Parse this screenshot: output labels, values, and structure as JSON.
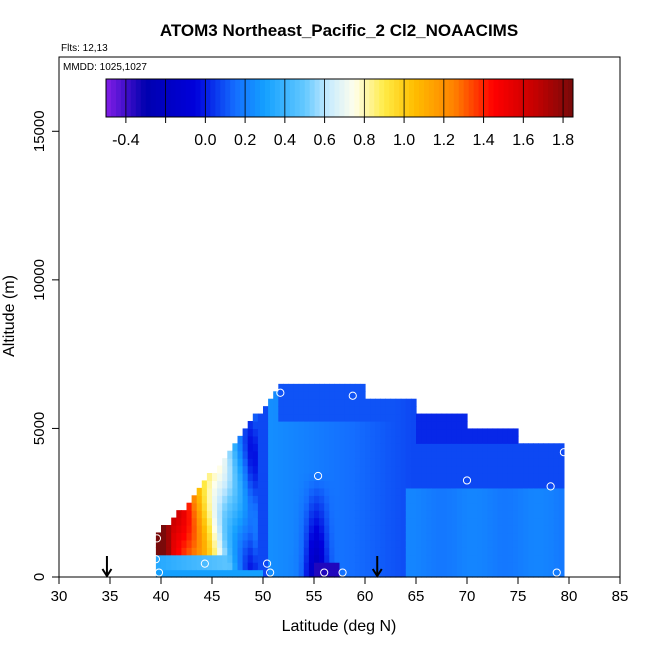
{
  "chart_data": {
    "type": "heatmap",
    "title": "ATOM3 Northeast_Pacific_2 Cl2_NOAACIMS",
    "flights_note": "Flts: 12,13",
    "dates_note": "MMDD: 1025,1027",
    "xlabel": "Latitude (deg N)",
    "ylabel": "Altitude (m)",
    "xlim": [
      30,
      85
    ],
    "ylim": [
      0,
      17500
    ],
    "x_ticks": [
      "30",
      "35",
      "40",
      "45",
      "50",
      "55",
      "60",
      "65",
      "70",
      "75",
      "80",
      "85"
    ],
    "y_ticks": [
      "0",
      "5000",
      "10000",
      "15000"
    ],
    "colorbar": {
      "range": [
        -0.5,
        1.85
      ],
      "tick_labels": [
        "-0.4",
        "0.0",
        "0.2",
        "0.4",
        "0.6",
        "0.8",
        "1.0",
        "1.2",
        "1.4",
        "1.6",
        "1.8"
      ],
      "tick_values": [
        -0.4,
        0.0,
        0.2,
        0.4,
        0.6,
        0.8,
        1.0,
        1.2,
        1.4,
        1.6,
        1.8
      ]
    },
    "arrows_latitude": [
      34.7,
      61.2
    ],
    "sample_points": [
      {
        "lat": 51.7,
        "alt": 6200
      },
      {
        "lat": 58.8,
        "alt": 6100
      },
      {
        "lat": 79.5,
        "alt": 4200
      },
      {
        "lat": 55.4,
        "alt": 3400
      },
      {
        "lat": 70.0,
        "alt": 3250
      },
      {
        "lat": 78.2,
        "alt": 3050
      },
      {
        "lat": 39.6,
        "alt": 1300
      },
      {
        "lat": 39.5,
        "alt": 600
      },
      {
        "lat": 44.3,
        "alt": 450
      },
      {
        "lat": 50.4,
        "alt": 450
      },
      {
        "lat": 39.8,
        "alt": 150
      },
      {
        "lat": 50.7,
        "alt": 150
      },
      {
        "lat": 56.0,
        "alt": 150
      },
      {
        "lat": 57.8,
        "alt": 150
      },
      {
        "lat": 78.8,
        "alt": 150
      }
    ]
  }
}
